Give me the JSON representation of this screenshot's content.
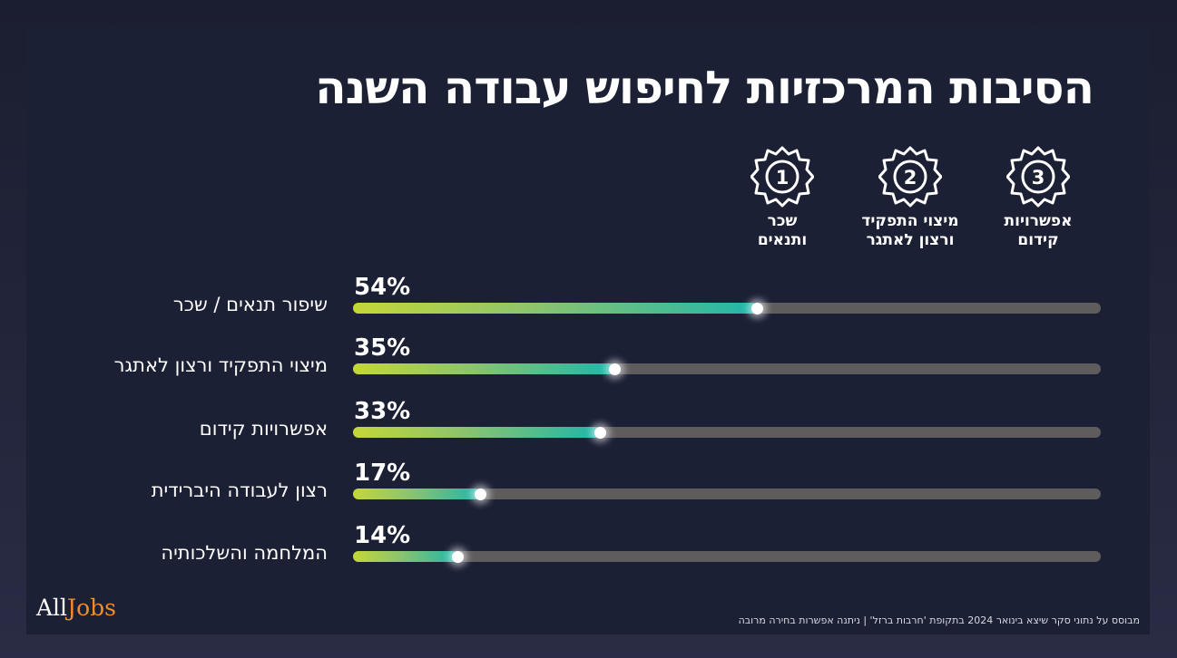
{
  "title": "הסיבות המרכזיות לחיפוש עבודה השנה",
  "badges": [
    {
      "number": "1",
      "line1": "שכר",
      "line2": "ותנאים"
    },
    {
      "number": "2",
      "line1": "מיצוי התפקיד",
      "line2": "ורצון לאתגר"
    },
    {
      "number": "3",
      "line1": "אפשרויות",
      "line2": "קידום"
    }
  ],
  "chart_data": {
    "type": "bar",
    "orientation": "horizontal",
    "categories": [
      "שיפור תנאים / שכר",
      "מיצוי התפקיד ורצון לאתגר",
      "אפשרויות קידום",
      "רצון לעבודה היברידית",
      "המלחמה והשלכותיה"
    ],
    "values": [
      54,
      35,
      33,
      17,
      14
    ],
    "value_labels": [
      "54%",
      "35%",
      "33%",
      "17%",
      "14%"
    ],
    "xlim": [
      0,
      100
    ],
    "grid": false,
    "colors": {
      "fill_start": "#c4d737",
      "fill_end": "#1fb6aa",
      "track": "#5f5c5e"
    }
  },
  "logo": {
    "all": "All",
    "jobs": "Jobs"
  },
  "footnote": "מבוסס על נתוני סקר שיצא בינואר 2024 בתקופת 'חרבות ברזל' | ניתנה אפשרות בחירה מרובה"
}
